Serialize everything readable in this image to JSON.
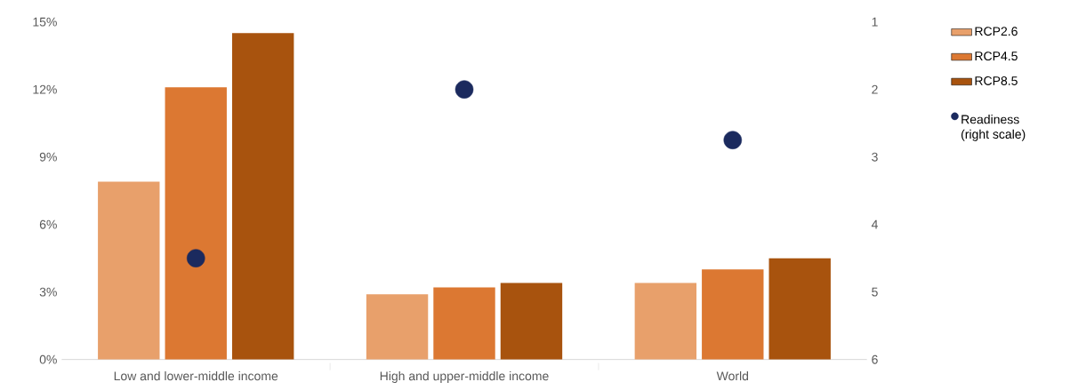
{
  "chart_data": {
    "type": "bar",
    "categories": [
      "Low and lower-middle income",
      "High and upper-middle income",
      "World"
    ],
    "series": [
      {
        "name": "RCP2.6",
        "color": "#e8a06b",
        "values": [
          7.9,
          2.9,
          3.4
        ]
      },
      {
        "name": "RCP4.5",
        "color": "#dc7832",
        "values": [
          12.1,
          3.2,
          4.0
        ]
      },
      {
        "name": "RCP8.5",
        "color": "#a8530e",
        "values": [
          14.5,
          3.4,
          4.5
        ]
      },
      {
        "name": "Readiness (right scale)",
        "type": "scatter",
        "axis": "y2",
        "x": [
          "Low and lower-middle income",
          "High and upper-middle income",
          "World"
        ],
        "color": "#1b2a5e",
        "values": [
          4.5,
          2.0,
          2.75
        ]
      }
    ],
    "ylim": [
      0,
      15
    ],
    "yticks": [
      {
        "value": 0,
        "label": "0%"
      },
      {
        "value": 3,
        "label": "3%"
      },
      {
        "value": 6,
        "label": "6%"
      },
      {
        "value": 9,
        "label": "9%"
      },
      {
        "value": 12,
        "label": "12%"
      },
      {
        "value": 15,
        "label": "15%"
      }
    ],
    "y2lim": [
      6,
      1
    ],
    "y2ticks": [
      1,
      2,
      3,
      4,
      5,
      6
    ],
    "legend": "right"
  }
}
